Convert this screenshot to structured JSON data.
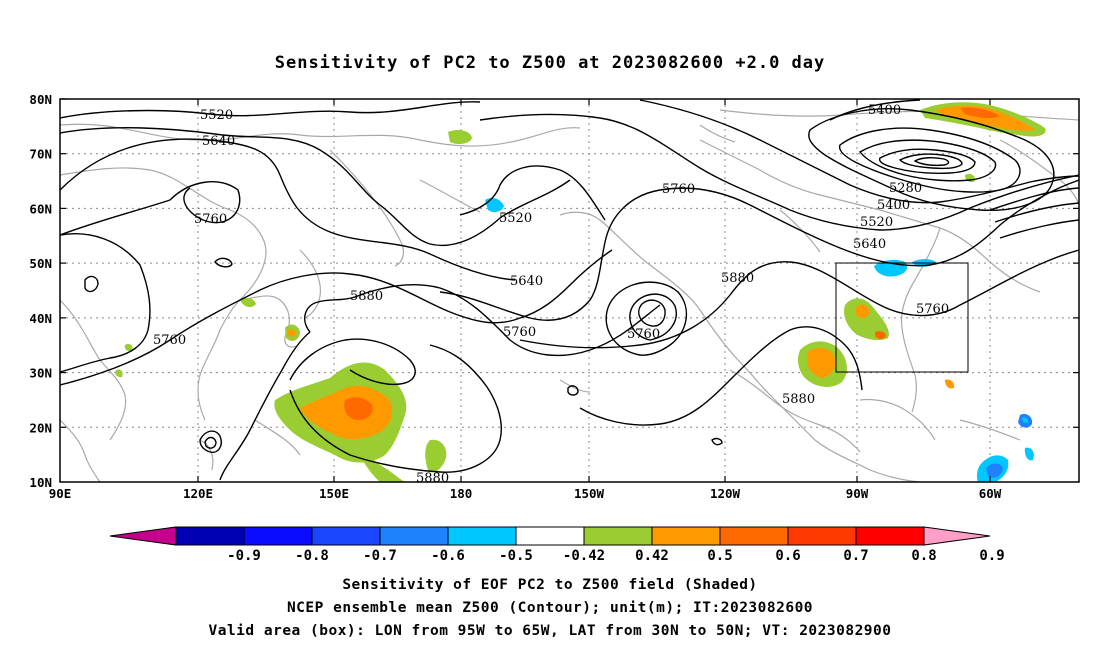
{
  "title": "Sensitivity of PC2 to Z500 at 2023082600 +2.0 day",
  "map": {
    "lon_range": [
      "90E",
      "50W"
    ],
    "lat_range": [
      "10N",
      "80N"
    ],
    "lon_ticks": [
      "90E",
      "120E",
      "150E",
      "180",
      "150W",
      "120W",
      "90W",
      "60W"
    ],
    "lat_ticks": [
      "80N",
      "70N",
      "60N",
      "50N",
      "40N",
      "30N",
      "20N",
      "10N"
    ],
    "valid_box": {
      "lon_from": "95W",
      "lon_to": "65W",
      "lat_from": "30N",
      "lat_to": "50N"
    }
  },
  "contour_labels": [
    {
      "id": "c5520a",
      "text": "5520"
    },
    {
      "id": "c5640a",
      "text": "5640"
    },
    {
      "id": "c5760a",
      "text": "5760"
    },
    {
      "id": "c5760b",
      "text": "5760"
    },
    {
      "id": "c5880a",
      "text": "5880"
    },
    {
      "id": "c5520b",
      "text": "5520"
    },
    {
      "id": "c5640b",
      "text": "5640"
    },
    {
      "id": "c5760c",
      "text": "5760"
    },
    {
      "id": "c5760d",
      "text": "5760"
    },
    {
      "id": "c5760e",
      "text": "5760"
    },
    {
      "id": "c5880b",
      "text": "5880"
    },
    {
      "id": "c5880c",
      "text": "5880"
    },
    {
      "id": "c5880d",
      "text": "5880"
    },
    {
      "id": "c5400a",
      "text": "5400"
    },
    {
      "id": "c5280a",
      "text": "5280"
    },
    {
      "id": "c5400b",
      "text": "5400"
    },
    {
      "id": "c5520c",
      "text": "5520"
    },
    {
      "id": "c5640c",
      "text": "5640"
    },
    {
      "id": "c5760f",
      "text": "5760"
    }
  ],
  "colorbar": {
    "labels": [
      "-0.9",
      "-0.8",
      "-0.7",
      "-0.6",
      "-0.5",
      "-0.42",
      "0.42",
      "0.5",
      "0.6",
      "0.7",
      "0.8",
      "0.9"
    ],
    "colors": [
      "#c4008c",
      "#0000b4",
      "#0a0aff",
      "#1a46ff",
      "#1e82ff",
      "#00c8ff",
      "#ffffff",
      "#9acd32",
      "#ff9900",
      "#ff6a00",
      "#ff3a00",
      "#ff0000",
      "#ff9ec8"
    ]
  },
  "caption_lines": [
    "Sensitivity of EOF PC2 to Z500 field (Shaded)",
    "NCEP ensemble mean Z500 (Contour); unit(m); IT:2023082600",
    "Valid area (box): LON from 95W to 65W, LAT from 30N to 50N; VT: 2023082900"
  ]
}
